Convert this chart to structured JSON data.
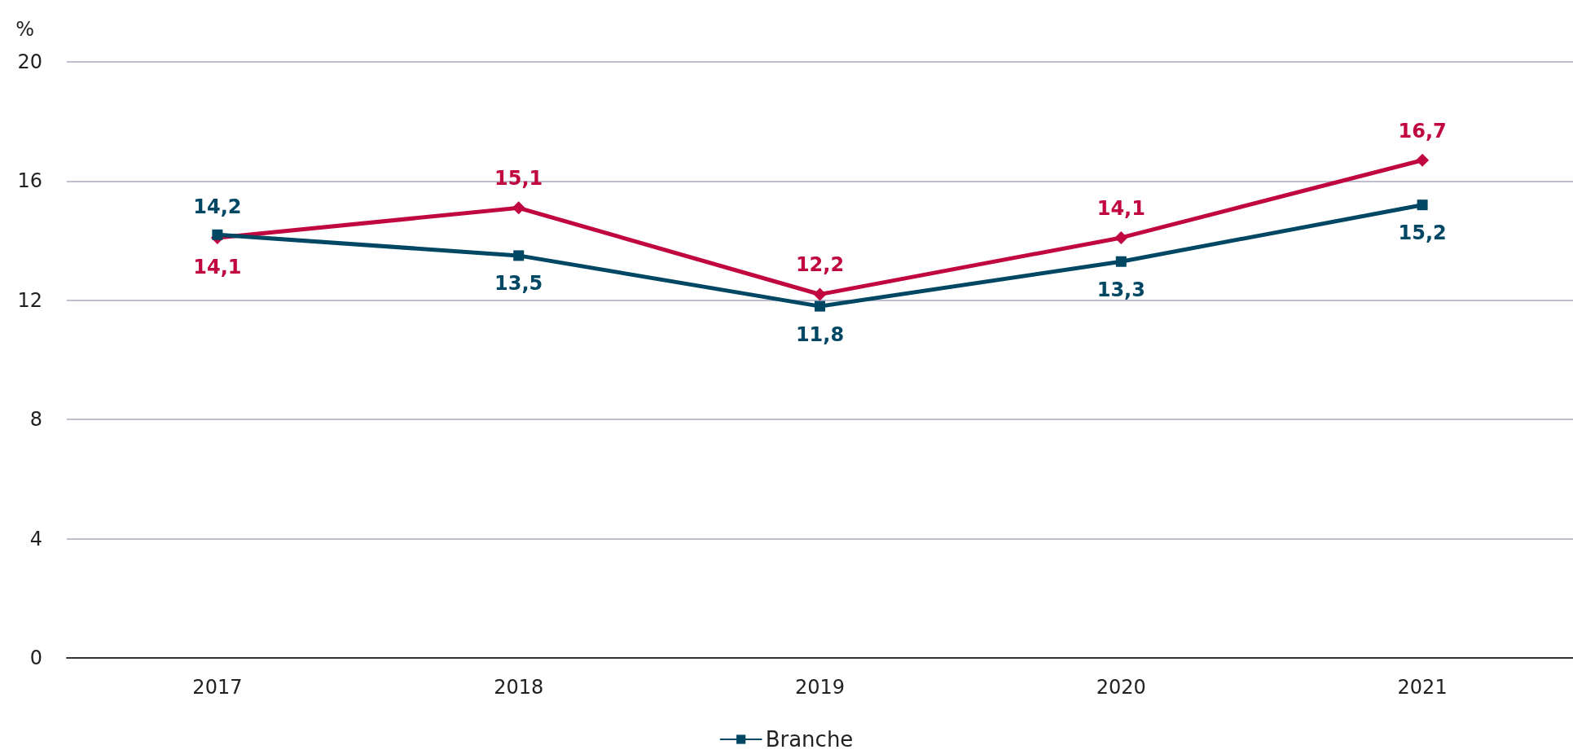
{
  "chart_data": {
    "type": "line",
    "ylabel": "%",
    "categories": [
      "2017",
      "2018",
      "2019",
      "2020",
      "2021"
    ],
    "series": [
      {
        "color": "#c0073f",
        "marker": "diamond",
        "values": [
          14.1,
          15.1,
          12.2,
          14.1,
          16.7
        ],
        "value_labels": [
          "14,1",
          "15,1",
          "12,2",
          "14,1",
          "16,7"
        ]
      },
      {
        "name": "Branche",
        "color": "#004764",
        "marker": "square",
        "values": [
          14.2,
          13.5,
          11.8,
          13.3,
          15.2
        ],
        "value_labels": [
          "14,2",
          "13,5",
          "11,8",
          "13,3",
          "15,2"
        ]
      }
    ],
    "ylim": [
      0,
      20
    ],
    "yticks": [
      0,
      4,
      8,
      12,
      16,
      20
    ],
    "grid": "y",
    "legend": "bottom",
    "line_style": "solid"
  }
}
